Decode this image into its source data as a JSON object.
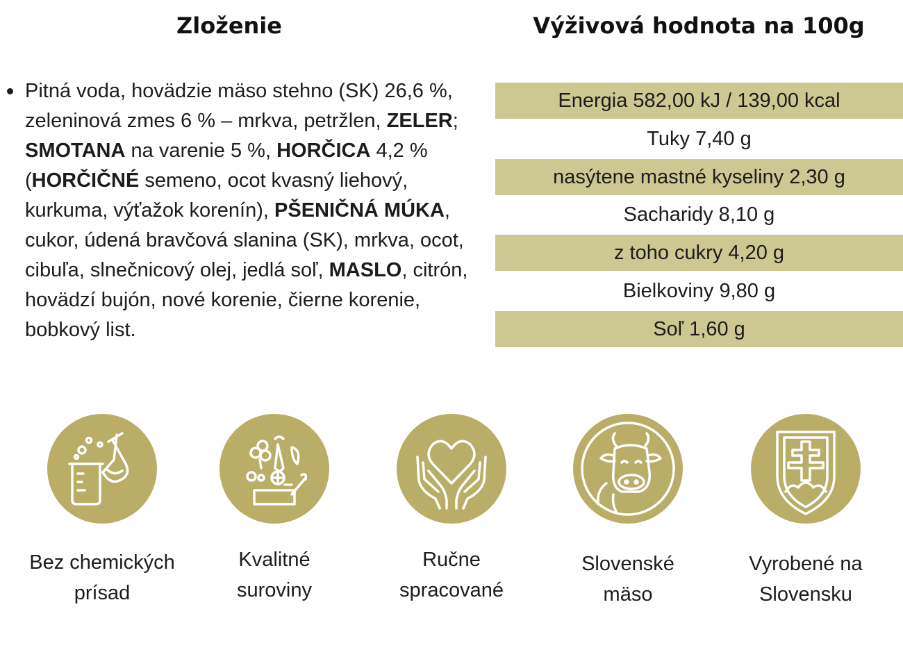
{
  "colors": {
    "accent": "#b9ad68",
    "row_shade": "#cdc792"
  },
  "ingredients": {
    "title": "Zloženie",
    "segments": [
      {
        "text": "Pitná voda, hovädzie mäso stehno (SK) 26,6 %, zeleninová zmes 6 % – mrkva, petržlen, ",
        "bold": false
      },
      {
        "text": "ZELER",
        "bold": true
      },
      {
        "text": "; ",
        "bold": false
      },
      {
        "text": "SMOTANA",
        "bold": true
      },
      {
        "text": " na varenie 5 %, ",
        "bold": false
      },
      {
        "text": "HORČICA",
        "bold": true
      },
      {
        "text": " 4,2 % (",
        "bold": false
      },
      {
        "text": "HORČIČNÉ",
        "bold": true
      },
      {
        "text": " semeno, ocot kvasný liehový, kurkuma, výťažok korenín), ",
        "bold": false
      },
      {
        "text": "PŠENIČNÁ MÚKA",
        "bold": true
      },
      {
        "text": ", cukor, údená bravčová slanina (SK), mrkva, ocot, cibuľa, slnečnicový olej, jedlá soľ, ",
        "bold": false
      },
      {
        "text": "MASLO",
        "bold": true
      },
      {
        "text": ", citrón, hovädzí bujón, nové korenie, čierne korenie, bobkový list.",
        "bold": false
      }
    ]
  },
  "nutrition": {
    "title": "Výživová hodnota na 100g",
    "rows": [
      {
        "text": "Energia 582,00 kJ / 139,00 kcal",
        "shaded": true
      },
      {
        "text": "Tuky 7,40 g",
        "shaded": false
      },
      {
        "text": "nasýtene mastné kyseliny 2,30 g",
        "shaded": true
      },
      {
        "text": "Sacharidy 8,10 g",
        "shaded": false
      },
      {
        "text": "z toho cukry 4,20 g",
        "shaded": true
      },
      {
        "text": "Bielkoviny 9,80 g",
        "shaded": false
      },
      {
        "text": "Soľ 1,60 g",
        "shaded": true
      }
    ]
  },
  "features": [
    {
      "icon": "lab-flask-icon",
      "label": "Bez chemických\nprísad"
    },
    {
      "icon": "vegetables-basket-icon",
      "label": "Kvalitné\nsuroviny"
    },
    {
      "icon": "heart-hands-icon",
      "label": "Ručne\nspracované"
    },
    {
      "icon": "cow-icon",
      "label": "Slovenské\nmäso"
    },
    {
      "icon": "slovak-coat-of-arms-icon",
      "label": "Vyrobené na\nSlovensku"
    }
  ]
}
